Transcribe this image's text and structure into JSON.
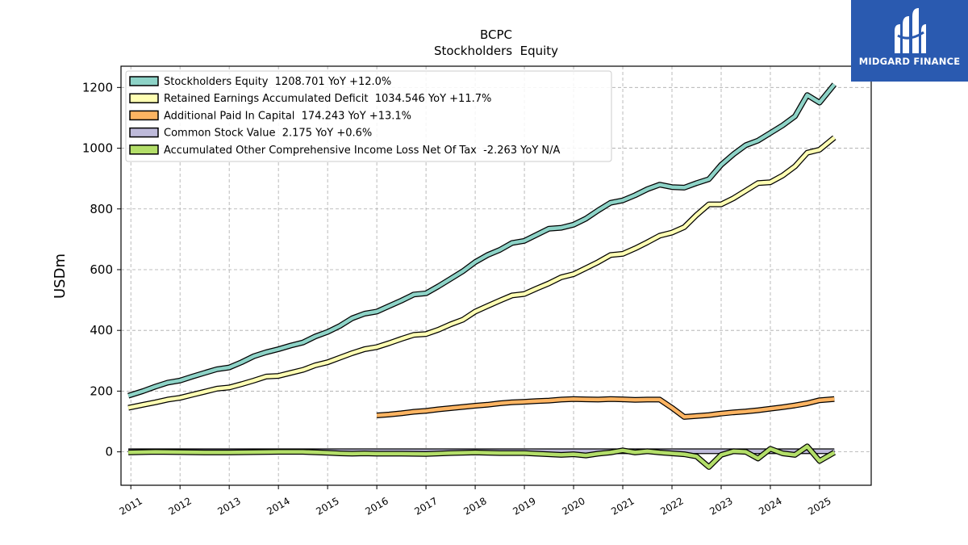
{
  "brand": {
    "name": "MIDGARD FINANCE",
    "accent": "#2a5ab0"
  },
  "chart_data": {
    "type": "line",
    "title": "BCPC",
    "subtitle": "Stockholders  Equity",
    "ylabel": "USDm",
    "xlabel": "",
    "xlim": [
      2010.8,
      2026.05
    ],
    "ylim": [
      -110,
      1270
    ],
    "yticks": [
      0,
      200,
      400,
      600,
      800,
      1000,
      1200
    ],
    "xticks": [
      2011,
      2012,
      2013,
      2014,
      2015,
      2016,
      2017,
      2018,
      2019,
      2020,
      2021,
      2022,
      2023,
      2024,
      2025
    ],
    "xtick_labels": [
      "2011",
      "2012",
      "2013",
      "2014",
      "2015",
      "2016",
      "2017",
      "2018",
      "2019",
      "2020",
      "2021",
      "2022",
      "2023",
      "2024",
      "2025"
    ],
    "grid": true,
    "legend_position": "top-left",
    "series": [
      {
        "name": "Stockholders Equity  1208.701 YoY +12.0%",
        "color": "#8dd3c7",
        "fill": false,
        "x": [
          2010.95,
          2011.25,
          2011.5,
          2011.75,
          2012.0,
          2012.25,
          2012.5,
          2012.75,
          2013.0,
          2013.25,
          2013.5,
          2013.75,
          2014.0,
          2014.25,
          2014.5,
          2014.75,
          2015.0,
          2015.25,
          2015.5,
          2015.75,
          2016.0,
          2016.25,
          2016.5,
          2016.75,
          2017.0,
          2017.25,
          2017.5,
          2017.75,
          2018.0,
          2018.25,
          2018.5,
          2018.75,
          2019.0,
          2019.25,
          2019.5,
          2019.75,
          2020.0,
          2020.25,
          2020.5,
          2020.75,
          2021.0,
          2021.25,
          2021.5,
          2021.75,
          2022.0,
          2022.25,
          2022.5,
          2022.75,
          2023.0,
          2023.25,
          2023.5,
          2023.75,
          2024.0,
          2024.25,
          2024.5,
          2024.75,
          2025.0,
          2025.3
        ],
        "y": [
          185,
          200,
          215,
          228,
          235,
          248,
          260,
          272,
          278,
          295,
          315,
          328,
          338,
          350,
          360,
          380,
          395,
          415,
          440,
          455,
          462,
          480,
          498,
          518,
          522,
          545,
          570,
          595,
          625,
          648,
          665,
          688,
          695,
          715,
          735,
          738,
          748,
          768,
          795,
          820,
          828,
          845,
          865,
          880,
          872,
          870,
          885,
          898,
          945,
          980,
          1010,
          1025,
          1050,
          1075,
          1105,
          1175,
          1150,
          1210
        ]
      },
      {
        "name": "Retained Earnings Accumulated Deficit  1034.546 YoY +11.7%",
        "color": "#ffffb3",
        "fill": false,
        "x": [
          2010.95,
          2011.25,
          2011.5,
          2011.75,
          2012.0,
          2012.25,
          2012.5,
          2012.75,
          2013.0,
          2013.25,
          2013.5,
          2013.75,
          2014.0,
          2014.25,
          2014.5,
          2014.75,
          2015.0,
          2015.25,
          2015.5,
          2015.75,
          2016.0,
          2016.25,
          2016.5,
          2016.75,
          2017.0,
          2017.25,
          2017.5,
          2017.75,
          2018.0,
          2018.25,
          2018.5,
          2018.75,
          2019.0,
          2019.25,
          2019.5,
          2019.75,
          2020.0,
          2020.25,
          2020.5,
          2020.75,
          2021.0,
          2021.25,
          2021.5,
          2021.75,
          2022.0,
          2022.25,
          2022.5,
          2022.75,
          2023.0,
          2023.25,
          2023.5,
          2023.75,
          2024.0,
          2024.25,
          2024.5,
          2024.75,
          2025.0,
          2025.3
        ],
        "y": [
          145,
          155,
          163,
          172,
          178,
          188,
          198,
          208,
          212,
          223,
          235,
          248,
          250,
          260,
          270,
          285,
          295,
          310,
          325,
          338,
          345,
          358,
          372,
          385,
          388,
          402,
          420,
          435,
          462,
          480,
          498,
          515,
          520,
          538,
          555,
          575,
          585,
          605,
          625,
          648,
          652,
          670,
          690,
          712,
          722,
          740,
          780,
          815,
          815,
          835,
          860,
          885,
          888,
          910,
          940,
          985,
          995,
          1035
        ]
      },
      {
        "name": "Additional Paid In Capital  174.243 YoY +13.1%",
        "color": "#fdb462",
        "fill": false,
        "x": [
          2016.0,
          2016.25,
          2016.5,
          2016.75,
          2017.0,
          2017.25,
          2017.5,
          2017.75,
          2018.0,
          2018.25,
          2018.5,
          2018.75,
          2019.0,
          2019.25,
          2019.5,
          2019.75,
          2020.0,
          2020.25,
          2020.5,
          2020.75,
          2021.0,
          2021.25,
          2021.5,
          2021.75,
          2022.0,
          2022.25,
          2022.5,
          2022.75,
          2023.0,
          2023.25,
          2023.5,
          2023.75,
          2024.0,
          2024.25,
          2024.5,
          2024.75,
          2025.0,
          2025.3
        ],
        "y": [
          120,
          123,
          127,
          132,
          135,
          140,
          144,
          148,
          152,
          155,
          160,
          163,
          165,
          167,
          169,
          172,
          174,
          173,
          172,
          174,
          173,
          171,
          172,
          172,
          145,
          115,
          118,
          121,
          126,
          130,
          133,
          137,
          142,
          147,
          153,
          160,
          170,
          174
        ]
      },
      {
        "name": "Common Stock Value  2.175 YoY +0.6%",
        "color": "#bebada",
        "fill": true,
        "x": [
          2010.95,
          2012.0,
          2013.0,
          2014.0,
          2015.0,
          2016.0,
          2017.0,
          2018.0,
          2019.0,
          2020.0,
          2021.0,
          2022.0,
          2023.0,
          2024.0,
          2025.0,
          2025.3
        ],
        "y": [
          2,
          2,
          2,
          2,
          2,
          2,
          2,
          2,
          2,
          2,
          2,
          2,
          2,
          2,
          2,
          2
        ]
      },
      {
        "name": "Accumulated Other Comprehensive Income Loss Net Of Tax  -2.263 YoY N/A",
        "color": "#b3de69",
        "fill": false,
        "x": [
          2010.95,
          2011.5,
          2012.0,
          2012.5,
          2013.0,
          2013.5,
          2014.0,
          2014.5,
          2015.0,
          2015.25,
          2015.5,
          2015.75,
          2016.0,
          2016.5,
          2017.0,
          2017.5,
          2018.0,
          2018.5,
          2019.0,
          2019.5,
          2019.75,
          2020.0,
          2020.25,
          2020.5,
          2020.75,
          2021.0,
          2021.25,
          2021.5,
          2021.75,
          2022.0,
          2022.25,
          2022.5,
          2022.75,
          2023.0,
          2023.25,
          2023.5,
          2023.75,
          2024.0,
          2024.25,
          2024.5,
          2024.75,
          2025.0,
          2025.3
        ],
        "y": [
          -2,
          0,
          -1,
          -2,
          -2,
          -1,
          0,
          0,
          -3,
          -5,
          -6,
          -5,
          -6,
          -6,
          -7,
          -4,
          -2,
          -4,
          -4,
          -8,
          -10,
          -8,
          -12,
          -6,
          -2,
          5,
          -2,
          2,
          -2,
          -5,
          -8,
          -15,
          -50,
          -10,
          2,
          0,
          -22,
          10,
          -5,
          -10,
          18,
          -30,
          -2
        ]
      }
    ]
  }
}
